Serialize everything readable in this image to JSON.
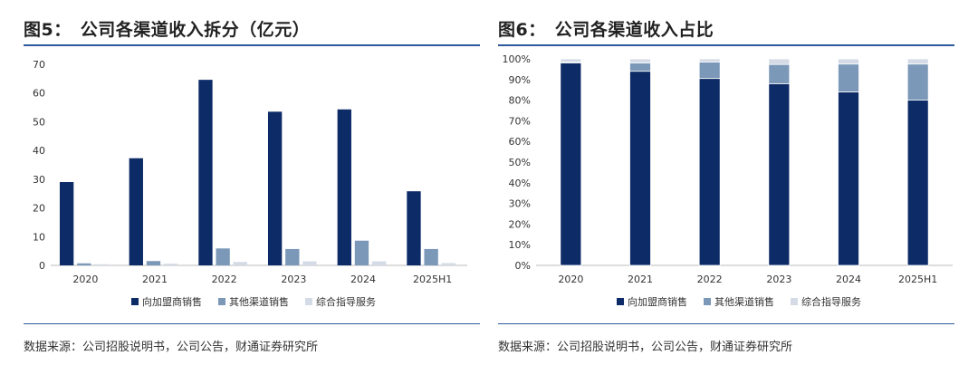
{
  "colors": {
    "series1": "#0d2b67",
    "series2": "#7b98b8",
    "series3": "#d4dbe6",
    "rule": "#2c5a9c"
  },
  "panels": [
    {
      "fig_label": "图5：",
      "title_text": "公司各渠道收入拆分（亿元）",
      "source": "数据来源：公司招股说明书，公司公告，财通证券研究所"
    },
    {
      "fig_label": "图6：",
      "title_text": "公司各渠道收入占比",
      "source": "数据来源：公司招股说明书，公司公告，财通证券研究所"
    }
  ],
  "chart_data": [
    {
      "type": "bar",
      "categories": [
        "2020",
        "2021",
        "2022",
        "2023",
        "2024",
        "2025H1"
      ],
      "series": [
        {
          "name": "向加盟商销售",
          "values": [
            29.0,
            37.3,
            64.6,
            53.5,
            54.3,
            25.8
          ]
        },
        {
          "name": "其他渠道销售",
          "values": [
            0.7,
            1.5,
            5.9,
            5.7,
            8.6,
            5.7
          ]
        },
        {
          "name": "综合指导服务",
          "values": [
            0.4,
            0.6,
            1.2,
            1.4,
            1.4,
            0.8
          ]
        }
      ],
      "ylim": [
        0,
        70
      ],
      "yticks": [
        "0",
        "10",
        "20",
        "30",
        "40",
        "50",
        "60",
        "70"
      ],
      "legend_position": "bottom"
    },
    {
      "type": "bar",
      "stacked": true,
      "categories": [
        "2020",
        "2021",
        "2022",
        "2023",
        "2024",
        "2025H1"
      ],
      "series": [
        {
          "name": "向加盟商销售",
          "values": [
            98,
            94,
            90.5,
            88,
            84,
            80
          ]
        },
        {
          "name": "其他渠道销售",
          "values": [
            0.5,
            4,
            8,
            9.3,
            13.5,
            17.5
          ]
        },
        {
          "name": "综合指导服务",
          "values": [
            1.5,
            2,
            1.5,
            2.7,
            2.5,
            2.5
          ]
        }
      ],
      "ylim": [
        0,
        100
      ],
      "yticks": [
        "0%",
        "10%",
        "20%",
        "30%",
        "40%",
        "50%",
        "60%",
        "70%",
        "80%",
        "90%",
        "100%"
      ],
      "legend_position": "bottom"
    }
  ]
}
